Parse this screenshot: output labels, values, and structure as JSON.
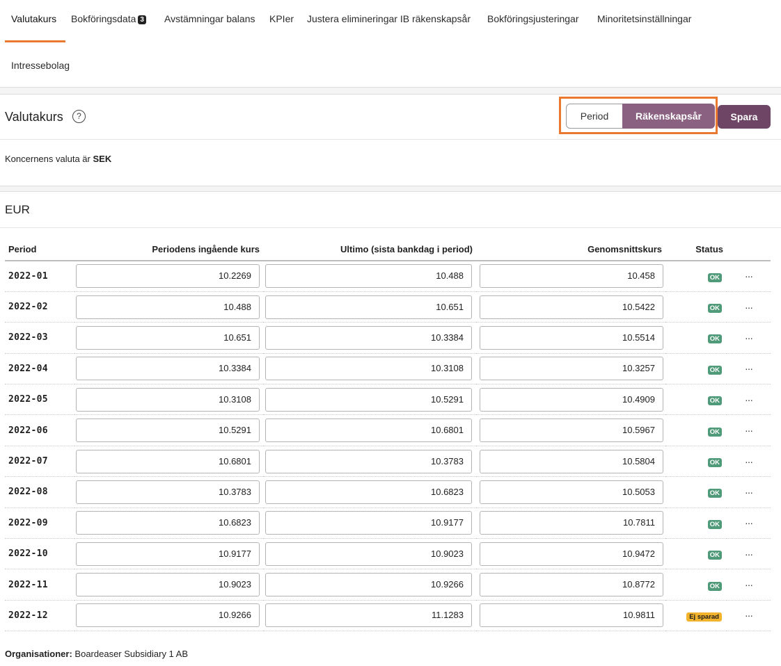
{
  "tabs": [
    {
      "label": "Valutakurs"
    },
    {
      "label": "Bokföringsdata",
      "badge": "3"
    },
    {
      "label": "Avstämningar balans"
    },
    {
      "label": "KPIer"
    },
    {
      "label": "Justera elimineringar IB räkenskapsår"
    },
    {
      "label": "Bokföringsjusteringar"
    },
    {
      "label": "Minoritetsinställningar"
    },
    {
      "label": "Intressebolag"
    }
  ],
  "header": {
    "title": "Valutakurs",
    "help_symbol": "?",
    "toggle": {
      "period_label": "Period",
      "fiscal_year_label": "Räkenskapsår",
      "selected": "Räkenskapsår"
    },
    "save_label": "Spara"
  },
  "info": {
    "prefix": "Koncernens valuta är",
    "currency": "SEK"
  },
  "section": {
    "title": "EUR"
  },
  "table": {
    "headers": {
      "period": "Period",
      "opening": "Periodens ingående kurs",
      "closing": "Ultimo (sista bankdag i period)",
      "average": "Genomsnittskurs",
      "status": "Status"
    },
    "rows": [
      {
        "period": "2022-01",
        "opening": "10.2269",
        "closing": "10.488",
        "average": "10.458",
        "status": "OK"
      },
      {
        "period": "2022-02",
        "opening": "10.488",
        "closing": "10.651",
        "average": "10.5422",
        "status": "OK"
      },
      {
        "period": "2022-03",
        "opening": "10.651",
        "closing": "10.3384",
        "average": "10.5514",
        "status": "OK"
      },
      {
        "period": "2022-04",
        "opening": "10.3384",
        "closing": "10.3108",
        "average": "10.3257",
        "status": "OK"
      },
      {
        "period": "2022-05",
        "opening": "10.3108",
        "closing": "10.5291",
        "average": "10.4909",
        "status": "OK"
      },
      {
        "period": "2022-06",
        "opening": "10.5291",
        "closing": "10.6801",
        "average": "10.5967",
        "status": "OK"
      },
      {
        "period": "2022-07",
        "opening": "10.6801",
        "closing": "10.3783",
        "average": "10.5804",
        "status": "OK"
      },
      {
        "period": "2022-08",
        "opening": "10.3783",
        "closing": "10.6823",
        "average": "10.5053",
        "status": "OK"
      },
      {
        "period": "2022-09",
        "opening": "10.6823",
        "closing": "10.9177",
        "average": "10.7811",
        "status": "OK"
      },
      {
        "period": "2022-10",
        "opening": "10.9177",
        "closing": "10.9023",
        "average": "10.9472",
        "status": "OK"
      },
      {
        "period": "2022-11",
        "opening": "10.9023",
        "closing": "10.9266",
        "average": "10.8772",
        "status": "OK"
      },
      {
        "period": "2022-12",
        "opening": "10.9266",
        "closing": "11.1283",
        "average": "10.9811",
        "status": "Ej sparad"
      }
    ],
    "more_symbol": "···"
  },
  "footer": {
    "label": "Organisationer:",
    "value": "Boardeaser Subsidiary 1 AB"
  },
  "colors": {
    "accent_orange": "#e8792f",
    "primary_purple": "#8b6182",
    "save_purple": "#6e4565",
    "ok_green": "#4f9a78",
    "warning_yellow": "#f3b32d"
  }
}
